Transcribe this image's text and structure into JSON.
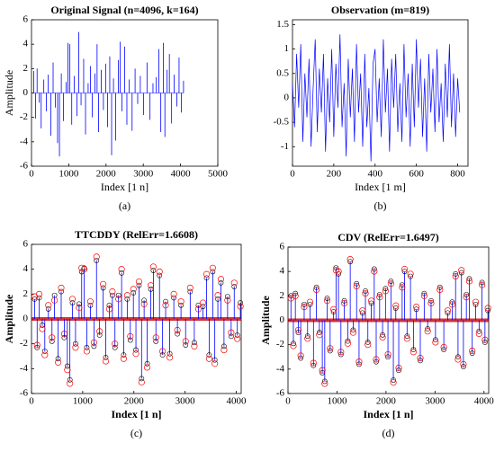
{
  "chart_data": [
    {
      "type": "stem",
      "title": "Original Signal (n=4096, k=164)",
      "xlabel": "Index [1 n]",
      "ylabel": "Amplitude",
      "panel_label": "(a)",
      "x": [
        60,
        110,
        150,
        210,
        260,
        330,
        400,
        450,
        520,
        580,
        640,
        700,
        750,
        800,
        860,
        930,
        980,
        1030,
        1080,
        1150,
        1220,
        1270,
        1330,
        1400,
        1450,
        1520,
        1580,
        1630,
        1700,
        1760,
        1800,
        1870,
        1930,
        1990,
        2040,
        2100,
        2150,
        2200,
        2260,
        2330,
        2380,
        2430,
        2500,
        2560,
        2620,
        2700,
        2780,
        2850,
        2920,
        3010,
        3100,
        3180,
        3260,
        3350,
        3420,
        3470,
        3540,
        3580,
        3640,
        3700,
        3760,
        3830,
        3900,
        3960,
        4020,
        4080
      ],
      "series": [
        {
          "color": "#0000ff",
          "style": "stem",
          "values": [
            1.8,
            -2.1,
            2.0,
            -0.8,
            -2.9,
            1.1,
            -1.5,
            1.5,
            -3.5,
            2.5,
            -1.2,
            -4.1,
            -5.2,
            1.6,
            -2.3,
            0.9,
            4.1,
            4.0,
            -2.6,
            1.4,
            -1.9,
            5.0,
            -1.0,
            2.8,
            -3.4,
            0.8,
            2.2,
            -2.0,
            1.6,
            4.0,
            -3.2,
            1.9,
            -1.4,
            2.4,
            -2.8,
            3.0,
            -5.1,
            1.2,
            -3.9,
            2.7,
            4.2,
            -1.5,
            3.8,
            -2.6,
            1.1,
            -3.1,
            2.0,
            -0.9,
            1.4,
            -1.8,
            2.5,
            -2.2,
            0.8,
            1.3,
            3.6,
            -3.2,
            4.1,
            -3.6,
            1.9,
            3.2,
            -2.5,
            1.5,
            -1.1,
            2.9,
            -1.6,
            1.0
          ]
        }
      ],
      "xlim": [
        0,
        5000
      ],
      "xticks": [
        0,
        1000,
        2000,
        3000,
        4000,
        5000
      ],
      "ylim": [
        -6,
        6
      ],
      "yticks": [
        -6,
        -4,
        -2,
        0,
        2,
        4,
        6
      ]
    },
    {
      "type": "line",
      "title": "Observation (m=819)",
      "xlabel": "Index [1 m]",
      "panel_label": "(b)",
      "x": [
        0,
        10,
        20,
        30,
        40,
        50,
        60,
        70,
        80,
        90,
        100,
        110,
        120,
        130,
        140,
        150,
        160,
        170,
        180,
        190,
        200,
        210,
        220,
        230,
        240,
        250,
        260,
        270,
        280,
        290,
        300,
        310,
        320,
        330,
        340,
        350,
        360,
        370,
        380,
        390,
        400,
        410,
        420,
        430,
        440,
        450,
        460,
        470,
        480,
        490,
        500,
        510,
        520,
        530,
        540,
        550,
        560,
        570,
        580,
        590,
        600,
        610,
        620,
        630,
        640,
        650,
        660,
        670,
        680,
        690,
        700,
        710,
        720,
        730,
        740,
        750,
        760,
        770,
        780,
        790,
        800,
        810
      ],
      "series": [
        {
          "color": "#0000ff",
          "values": [
            0.3,
            -0.6,
            0.9,
            -0.2,
            1.1,
            -0.9,
            0.5,
            -0.4,
            0.8,
            -1.0,
            0.2,
            1.2,
            -0.7,
            0.6,
            -0.3,
            0.9,
            -1.1,
            0.4,
            -0.5,
            1.0,
            -0.8,
            0.7,
            -0.2,
            1.3,
            -0.6,
            0.3,
            -1.2,
            0.8,
            -0.4,
            0.6,
            -0.9,
            1.1,
            -0.3,
            0.5,
            -1.0,
            0.9,
            -0.6,
            0.2,
            -1.3,
            0.7,
            1.0,
            -0.5,
            0.4,
            -0.8,
            1.2,
            -0.3,
            0.6,
            -1.1,
            0.8,
            -0.2,
            0.9,
            -0.7,
            0.3,
            -0.9,
            1.1,
            -0.4,
            0.5,
            -1.0,
            0.7,
            -0.6,
            1.2,
            -0.2,
            0.8,
            -0.8,
            0.4,
            -1.1,
            0.9,
            -0.3,
            0.6,
            -0.7,
            1.0,
            -0.5,
            0.3,
            -0.9,
            0.7,
            -0.4,
            1.1,
            -0.6,
            0.5,
            -0.8,
            0.4,
            -0.3
          ]
        }
      ],
      "xlim": [
        0,
        850
      ],
      "xticks": [
        0,
        200,
        400,
        600,
        800
      ],
      "ylim": [
        -1.4,
        1.6
      ],
      "yticks": [
        -1,
        -0.5,
        0,
        0.5,
        1,
        1.5
      ]
    },
    {
      "type": "stem",
      "title": "TTCDDY (RelErr=1.6608)",
      "xlabel": "Index [1 n]",
      "ylabel": "Amplitude",
      "panel_label": "(c)",
      "bold_labels": true,
      "x": [
        60,
        110,
        150,
        210,
        260,
        330,
        400,
        450,
        520,
        580,
        640,
        700,
        750,
        800,
        860,
        930,
        980,
        1030,
        1080,
        1150,
        1220,
        1270,
        1330,
        1400,
        1450,
        1520,
        1580,
        1630,
        1700,
        1760,
        1800,
        1870,
        1930,
        1990,
        2040,
        2100,
        2150,
        2200,
        2260,
        2330,
        2380,
        2430,
        2500,
        2560,
        2620,
        2700,
        2780,
        2850,
        2920,
        3010,
        3100,
        3180,
        3260,
        3350,
        3420,
        3470,
        3540,
        3580,
        3640,
        3700,
        3760,
        3830,
        3900,
        3960,
        4020,
        4080
      ],
      "series": [
        {
          "color": "#0000ff",
          "style": "stem",
          "marker_color": "#000000",
          "values": [
            1.6,
            -2.3,
            1.7,
            -0.5,
            -2.6,
            0.8,
            -1.8,
            1.9,
            -3.2,
            2.2,
            -1.5,
            -3.8,
            -4.9,
            1.3,
            -2.0,
            1.2,
            3.8,
            4.1,
            -2.3,
            1.1,
            -2.2,
            4.7,
            -1.3,
            2.5,
            -3.1,
            1.1,
            1.9,
            -2.3,
            1.9,
            3.7,
            -2.9,
            1.6,
            -1.7,
            2.1,
            -2.5,
            2.7,
            -4.8,
            1.5,
            -3.6,
            2.4,
            3.9,
            -1.8,
            3.5,
            -2.9,
            1.4,
            -2.8,
            1.7,
            -1.2,
            1.1,
            -2.1,
            2.2,
            -1.9,
            1.1,
            1.0,
            3.3,
            -2.9,
            3.8,
            -3.3,
            1.6,
            2.9,
            -2.2,
            1.8,
            -1.4,
            2.6,
            -1.3,
            1.3
          ]
        },
        {
          "color": "#ff0000",
          "style": "circle",
          "values": [
            1.8,
            -2.1,
            2.0,
            -0.8,
            -2.9,
            1.1,
            -1.5,
            1.5,
            -3.5,
            2.5,
            -1.2,
            -4.1,
            -5.2,
            1.6,
            -2.3,
            0.9,
            4.1,
            4.0,
            -2.6,
            1.4,
            -1.9,
            5.0,
            -1.0,
            2.8,
            -3.4,
            0.8,
            2.2,
            -2.0,
            1.6,
            4.0,
            -3.2,
            1.9,
            -1.4,
            2.4,
            -2.8,
            3.0,
            -5.1,
            1.2,
            -3.9,
            2.7,
            4.2,
            -1.5,
            3.8,
            -2.6,
            1.1,
            -3.1,
            2.0,
            -0.9,
            1.4,
            -1.8,
            2.5,
            -2.2,
            0.8,
            1.3,
            3.6,
            -3.2,
            4.1,
            -3.6,
            1.9,
            3.2,
            -2.5,
            1.5,
            -1.1,
            2.9,
            -1.6,
            1.0
          ]
        }
      ],
      "xlim": [
        0,
        4096
      ],
      "xticks": [
        0,
        1000,
        2000,
        3000,
        4000
      ],
      "ylim": [
        -6,
        6
      ],
      "yticks": [
        -6,
        -4,
        -2,
        0,
        2,
        4,
        6
      ]
    },
    {
      "type": "stem",
      "title": "CDV (RelErr=1.6497)",
      "xlabel": "Index [1 n]",
      "ylabel": "Amplitude",
      "panel_label": "(d)",
      "bold_labels": true,
      "x": [
        60,
        110,
        150,
        210,
        260,
        330,
        400,
        450,
        520,
        580,
        640,
        700,
        750,
        800,
        860,
        930,
        980,
        1030,
        1080,
        1150,
        1220,
        1270,
        1330,
        1400,
        1450,
        1520,
        1580,
        1630,
        1700,
        1760,
        1800,
        1870,
        1930,
        1990,
        2040,
        2100,
        2150,
        2200,
        2260,
        2330,
        2380,
        2430,
        2500,
        2560,
        2620,
        2700,
        2780,
        2850,
        2920,
        3010,
        3100,
        3180,
        3260,
        3350,
        3420,
        3470,
        3540,
        3580,
        3640,
        3700,
        3760,
        3830,
        3900,
        3960,
        4020,
        4080
      ],
      "series": [
        {
          "color": "#0000ff",
          "style": "stem",
          "marker_color": "#000000",
          "values": [
            2.0,
            -1.9,
            2.2,
            -1.0,
            -3.1,
            1.3,
            -1.3,
            1.3,
            -3.7,
            2.7,
            -1.0,
            -4.3,
            -5.0,
            1.8,
            -2.5,
            0.7,
            4.3,
            3.8,
            -2.8,
            1.6,
            -1.7,
            4.8,
            -0.8,
            3.0,
            -3.6,
            0.6,
            2.4,
            -1.8,
            1.4,
            4.2,
            -3.4,
            2.1,
            -1.2,
            2.6,
            -3.0,
            3.2,
            -4.9,
            1.0,
            -4.1,
            2.9,
            4.0,
            -1.3,
            3.6,
            -2.4,
            0.9,
            -3.3,
            2.2,
            -0.7,
            1.6,
            -1.6,
            2.7,
            -2.4,
            0.6,
            1.5,
            3.8,
            -3.0,
            3.9,
            -3.8,
            2.1,
            3.4,
            -2.7,
            1.3,
            -0.9,
            3.1,
            -1.8,
            0.8
          ]
        },
        {
          "color": "#ff0000",
          "style": "circle",
          "values": [
            1.8,
            -2.1,
            2.0,
            -0.8,
            -2.9,
            1.1,
            -1.5,
            1.5,
            -3.5,
            2.5,
            -1.2,
            -4.1,
            -5.2,
            1.6,
            -2.3,
            0.9,
            4.1,
            4.0,
            -2.6,
            1.4,
            -1.9,
            5.0,
            -1.0,
            2.8,
            -3.4,
            0.8,
            2.2,
            -2.0,
            1.6,
            4.0,
            -3.2,
            1.9,
            -1.4,
            2.4,
            -2.8,
            3.0,
            -5.1,
            1.2,
            -3.9,
            2.7,
            4.2,
            -1.5,
            3.8,
            -2.6,
            1.1,
            -3.1,
            2.0,
            -0.9,
            1.4,
            -1.8,
            2.5,
            -2.2,
            0.8,
            1.3,
            3.6,
            -3.2,
            4.1,
            -3.6,
            1.9,
            3.2,
            -2.5,
            1.5,
            -1.1,
            2.9,
            -1.6,
            1.0
          ]
        }
      ],
      "xlim": [
        0,
        4096
      ],
      "xticks": [
        0,
        1000,
        2000,
        3000,
        4000
      ],
      "ylim": [
        -6,
        6
      ],
      "yticks": [
        -6,
        -4,
        -2,
        0,
        2,
        4,
        6
      ]
    }
  ]
}
